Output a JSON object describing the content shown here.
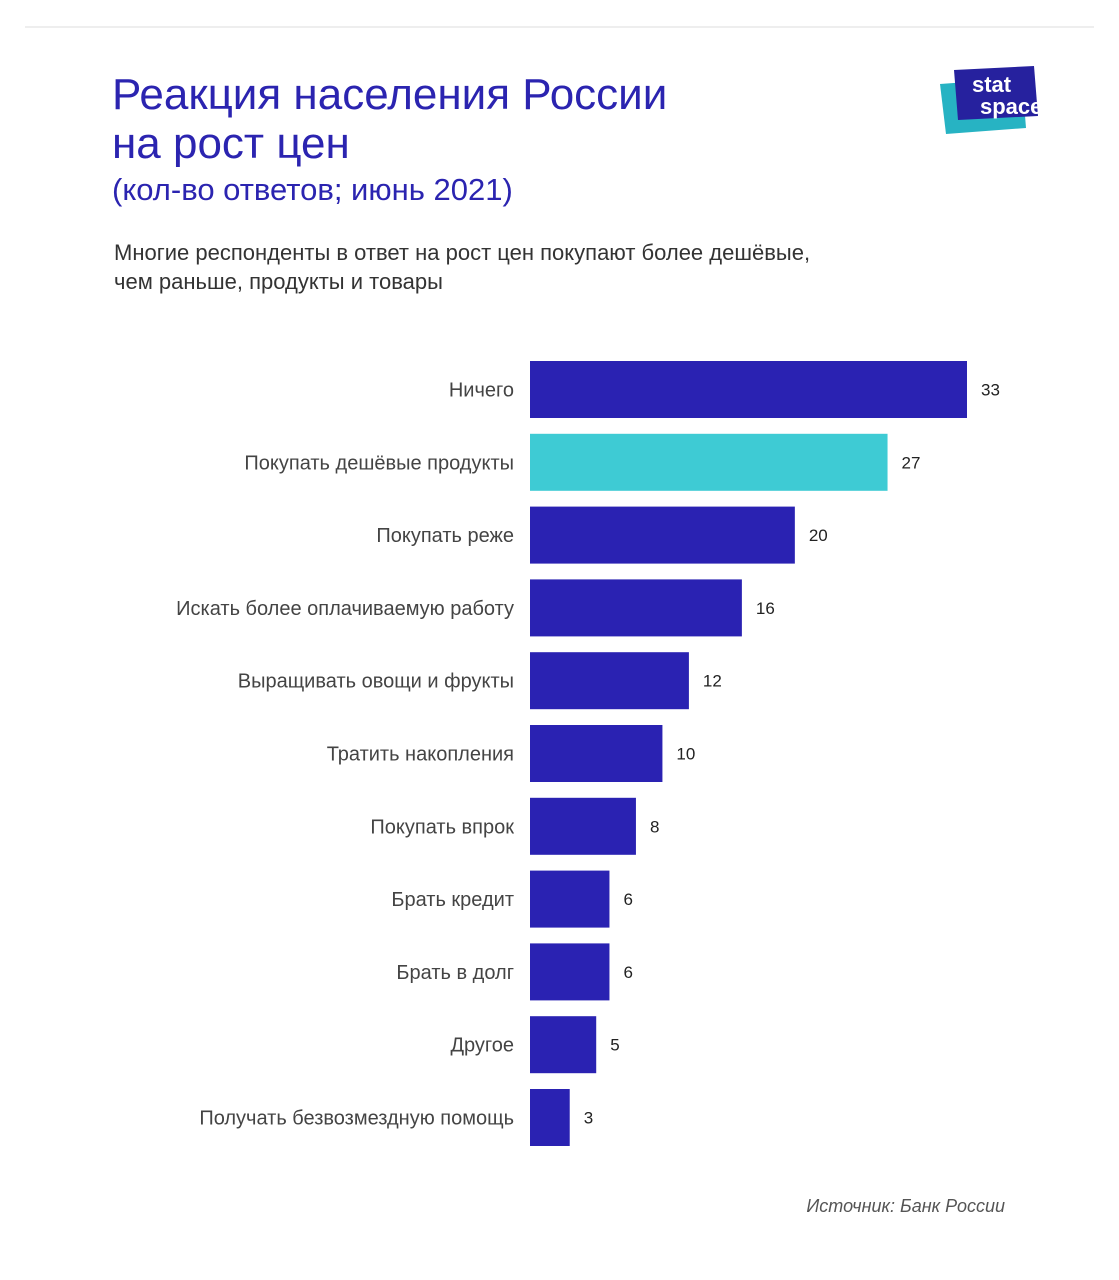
{
  "header": {
    "title_line1": "Реакция населения России",
    "title_line2": "на рост цен",
    "subtitle": "(кол-во ответов; июнь 2021)",
    "lead_line1": "Многие респонденты в ответ на рост цен покупают более дешёвые,",
    "lead_line2": "чем раньше, продукты и товары"
  },
  "logo": {
    "line1": "stat",
    "line2": "space"
  },
  "footer": {
    "source": "Источник: Банк России"
  },
  "colors": {
    "title": "#2b24b0",
    "bar": "#2a22b2",
    "highlight": "#3ecbd4",
    "logo_navy": "#26219e",
    "logo_teal": "#27b3c3"
  },
  "chart_data": {
    "type": "bar",
    "orientation": "horizontal",
    "categories": [
      "Ничего",
      "Покупать дешёвые продукты",
      "Покупать реже",
      "Искать более оплачиваемую работу",
      "Выращивать овощи и фрукты",
      "Тратить накопления",
      "Покупать впрок",
      "Брать кредит",
      "Брать в долг",
      "Другое",
      "Получать безвозмездную помощь"
    ],
    "values": [
      33,
      27,
      20,
      16,
      12,
      10,
      8,
      6,
      6,
      5,
      3
    ],
    "highlight_index": 1,
    "xlim": [
      0,
      33
    ],
    "grid": false,
    "data_labels": true
  }
}
